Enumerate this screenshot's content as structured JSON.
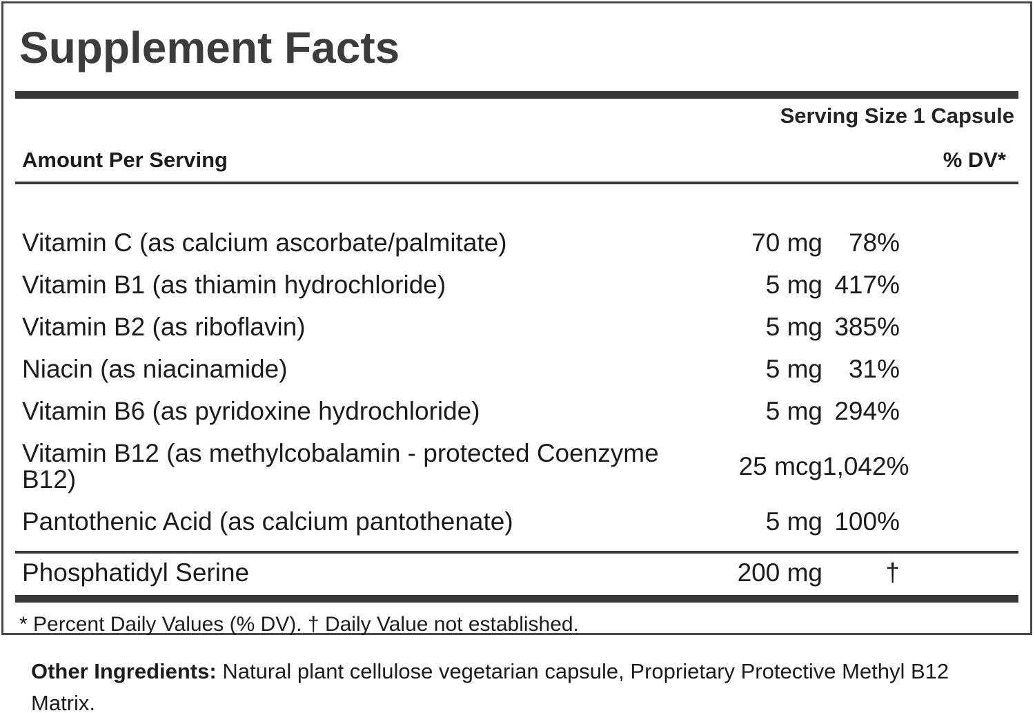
{
  "title": "Supplement Facts",
  "serving_size": "Serving Size 1 Capsule",
  "columns": {
    "amount_header": "Amount Per Serving",
    "dv_header": "% DV*"
  },
  "rows": [
    {
      "name": "Vitamin C (as calcium ascorbate/palmitate)",
      "amount": "70 mg",
      "dv": "78%"
    },
    {
      "name": "Vitamin B1 (as thiamin hydrochloride)",
      "amount": "5 mg",
      "dv": "417%"
    },
    {
      "name": "Vitamin B2 (as riboflavin)",
      "amount": "5 mg",
      "dv": "385%"
    },
    {
      "name": "Niacin (as niacinamide)",
      "amount": "5 mg",
      "dv": "31%"
    },
    {
      "name": "Vitamin B6 (as pyridoxine hydrochloride)",
      "amount": "5 mg",
      "dv": "294%"
    },
    {
      "name": "Vitamin B12 (as methylcobalamin - protected Coenzyme B12)",
      "amount": "25 mcg",
      "dv": "1,042%"
    },
    {
      "name": "Pantothenic Acid (as calcium pantothenate)",
      "amount": "5 mg",
      "dv": "100%"
    },
    {
      "name": "Phosphatidyl Serine",
      "amount": "200 mg",
      "dv": "†"
    }
  ],
  "footnote": "* Percent Daily Values (% DV). † Daily Value not established.",
  "other_ingredients": {
    "label": "Other Ingredients:",
    "text": "Natural plant cellulose vegetarian capsule, Proprietary Protective Methyl B12 Matrix."
  },
  "colors": {
    "rule": "#383838",
    "border": "#4a4a4a",
    "text": "#1c1c1c",
    "title": "#3c3c3c"
  }
}
